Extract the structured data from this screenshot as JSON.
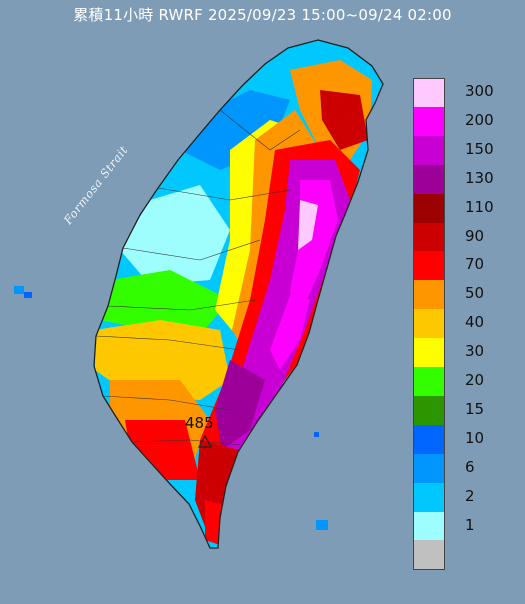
{
  "title": "累積11小時 RWRF 2025/09/23 15:00~09/24 02:00",
  "strait_label": "Formosa Strait",
  "max_point": {
    "value": "485",
    "marker": "triangle-marker-icon"
  },
  "colors": {
    "sea": "#7f9cb6",
    "land_outline": "#222222",
    "max_marker": "#222222"
  },
  "legend": {
    "unit_note": "",
    "items": [
      {
        "label": "300",
        "color": "#fec9fe"
      },
      {
        "label": "200",
        "color": "#fe00fe"
      },
      {
        "label": "150",
        "color": "#c800d4"
      },
      {
        "label": "130",
        "color": "#9c0099"
      },
      {
        "label": "110",
        "color": "#9c0000"
      },
      {
        "label": "90",
        "color": "#cc0000"
      },
      {
        "label": "70",
        "color": "#fe0000"
      },
      {
        "label": "50",
        "color": "#fe9600"
      },
      {
        "label": "40",
        "color": "#fec800"
      },
      {
        "label": "30",
        "color": "#fefe00"
      },
      {
        "label": "20",
        "color": "#32fe00"
      },
      {
        "label": "15",
        "color": "#2b9600"
      },
      {
        "label": "10",
        "color": "#0066fe"
      },
      {
        "label": "6",
        "color": "#0096fe"
      },
      {
        "label": "2",
        "color": "#00c8fe"
      },
      {
        "label": "1",
        "color": "#9efefe"
      },
      {
        "label": "",
        "color": "#c0c0c0"
      }
    ]
  }
}
